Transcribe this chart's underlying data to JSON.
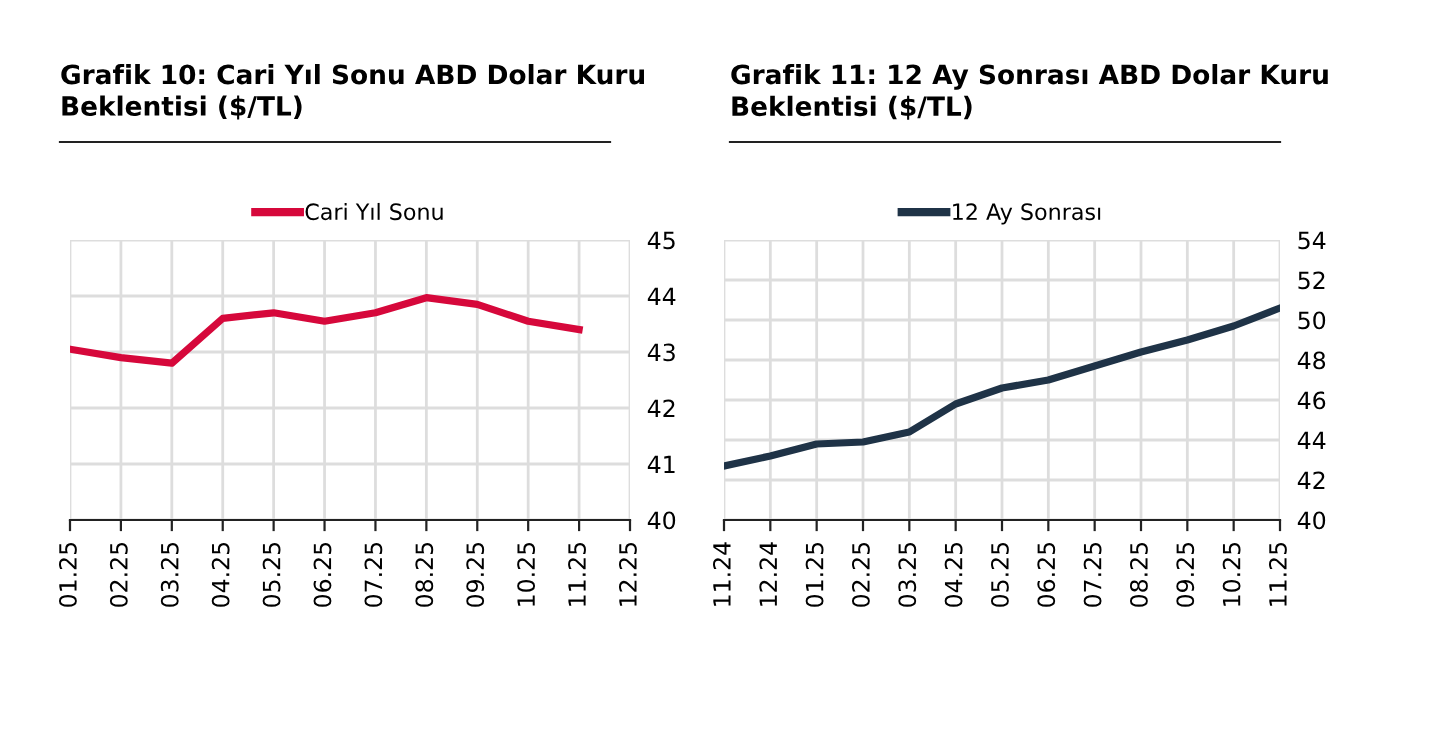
{
  "chart_data": [
    {
      "type": "line",
      "title": "Grafik 10: Cari Yıl Sonu ABD Dolar Kuru\nBeklentisi ($/TL)",
      "categories": [
        "01.25",
        "02.25",
        "03.25",
        "04.25",
        "05.25",
        "06.25",
        "07.25",
        "08.25",
        "09.25",
        "10.25",
        "11.25",
        "12.25"
      ],
      "series": [
        {
          "name": "Cari Yıl Sonu",
          "color": "#d6083b",
          "values": [
            43.05,
            42.9,
            42.8,
            43.6,
            43.7,
            43.55,
            43.7,
            43.97,
            43.85,
            43.55,
            43.4,
            null
          ]
        }
      ],
      "ylim": [
        40,
        45
      ],
      "yticks": [
        40,
        41,
        42,
        43,
        44,
        45
      ],
      "grid": true,
      "legend": "top",
      "marker": "none",
      "line_style": "solid"
    },
    {
      "type": "line",
      "title": "Grafik 11: 12 Ay Sonrası ABD Dolar Kuru\nBeklentisi ($/TL)",
      "categories": [
        "11.24",
        "12.24",
        "01.25",
        "02.25",
        "03.25",
        "04.25",
        "05.25",
        "06.25",
        "07.25",
        "08.25",
        "09.25",
        "10.25",
        "11.25"
      ],
      "series": [
        {
          "name": "12 Ay Sonrası",
          "color": "#1f3347",
          "values": [
            42.7,
            43.2,
            43.8,
            43.9,
            44.4,
            45.8,
            46.6,
            47.0,
            47.7,
            48.4,
            49.0,
            49.7,
            50.6
          ]
        }
      ],
      "ylim": [
        40,
        54
      ],
      "yticks": [
        40,
        42,
        44,
        46,
        48,
        50,
        52,
        54
      ],
      "grid": true,
      "legend": "top",
      "marker": "none",
      "line_style": "solid"
    }
  ]
}
